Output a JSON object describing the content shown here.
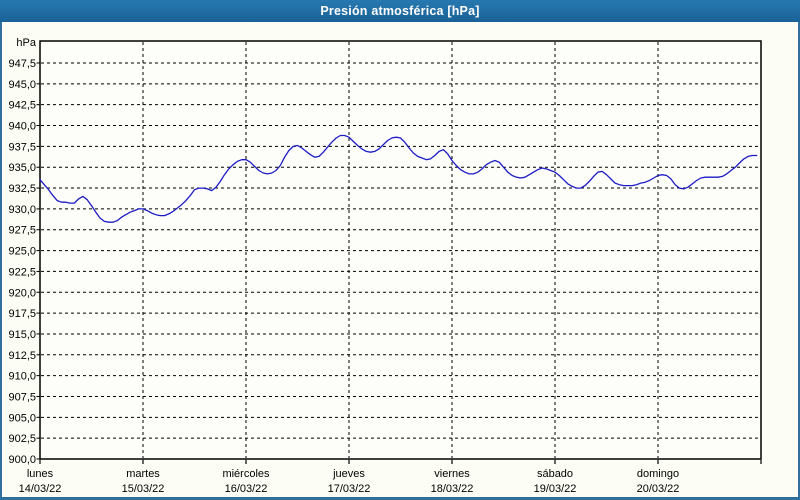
{
  "window": {
    "title": "Presión atmosférica [hPa]"
  },
  "colors": {
    "titlebar": "#1e6ca3",
    "window_border": "#2e6f9e",
    "page_background": "#fcfdf5",
    "plot_background": "#fdfef9",
    "grid": "#000000",
    "axis": "#000000",
    "line": "#1b1bc6",
    "title_text": "#ffffff"
  },
  "chart_data": {
    "type": "line",
    "title": "Presión atmosférica [hPa]",
    "y_unit_label": "hPa",
    "decimal_separator": ",",
    "grid": "dashed",
    "legend": "none",
    "ylim": [
      900.0,
      950.0
    ],
    "y_ticks": [
      947.5,
      945.0,
      942.5,
      940.0,
      937.5,
      935.0,
      932.5,
      930.0,
      927.5,
      925.0,
      922.5,
      920.0,
      917.5,
      915.0,
      912.5,
      910.0,
      907.5,
      905.0,
      902.5,
      900.0
    ],
    "y_tick_labels": [
      "947,5",
      "945,0",
      "942,5",
      "940,0",
      "937,5",
      "935,0",
      "932,5",
      "930,0",
      "927,5",
      "925,0",
      "922,5",
      "920,0",
      "917,5",
      "915,0",
      "912,5",
      "910,0",
      "907,5",
      "905,0",
      "902,5",
      "900,0"
    ],
    "x_days": [
      {
        "name": "lunes",
        "date": "14/03/22"
      },
      {
        "name": "martes",
        "date": "15/03/22"
      },
      {
        "name": "miércoles",
        "date": "16/03/22"
      },
      {
        "name": "jueves",
        "date": "17/03/22"
      },
      {
        "name": "viernes",
        "date": "18/03/22"
      },
      {
        "name": "sábado",
        "date": "19/03/22"
      },
      {
        "name": "domingo",
        "date": "20/03/22"
      }
    ],
    "x_unit": "hours from 14/03/22 00:00",
    "x_step_hours": 1,
    "series": [
      {
        "name": "Presión atmosférica",
        "color": "#1b1bc6",
        "values": [
          933.5,
          932.9,
          932.3,
          931.6,
          931.0,
          930.8,
          930.8,
          930.7,
          930.7,
          931.2,
          931.5,
          931.1,
          930.4,
          929.6,
          928.9,
          928.5,
          928.4,
          928.4,
          928.6,
          929.0,
          929.3,
          929.6,
          929.8,
          930.0,
          930.0,
          929.8,
          929.5,
          929.3,
          929.2,
          929.2,
          929.4,
          929.7,
          930.1,
          930.5,
          931.0,
          931.6,
          932.3,
          932.5,
          932.5,
          932.4,
          932.2,
          932.6,
          933.3,
          934.1,
          934.8,
          935.3,
          935.7,
          935.9,
          935.9,
          935.6,
          935.1,
          934.6,
          934.3,
          934.2,
          934.3,
          934.6,
          935.2,
          936.2,
          937.0,
          937.5,
          937.6,
          937.3,
          936.9,
          936.5,
          936.2,
          936.3,
          936.8,
          937.4,
          938.0,
          938.5,
          938.8,
          938.8,
          938.6,
          938.1,
          937.6,
          937.2,
          936.9,
          936.8,
          936.9,
          937.2,
          937.7,
          938.2,
          938.5,
          938.6,
          938.5,
          938.0,
          937.3,
          936.7,
          936.3,
          936.1,
          935.9,
          936.0,
          936.4,
          936.9,
          937.1,
          936.6,
          935.8,
          935.2,
          934.7,
          934.4,
          934.2,
          934.2,
          934.4,
          934.8,
          935.3,
          935.6,
          935.8,
          935.6,
          935.0,
          934.4,
          934.0,
          933.8,
          933.7,
          933.8,
          934.1,
          934.4,
          934.7,
          934.9,
          934.8,
          934.6,
          934.4,
          934.0,
          933.5,
          933.0,
          932.7,
          932.5,
          932.5,
          932.8,
          933.3,
          933.9,
          934.4,
          934.5,
          934.1,
          933.6,
          933.1,
          932.9,
          932.8,
          932.8,
          932.8,
          932.9,
          933.1,
          933.2,
          933.4,
          933.7,
          934.0,
          934.1,
          934.0,
          933.6,
          932.9,
          932.5,
          932.4,
          932.6,
          933.0,
          933.4,
          933.7,
          933.8,
          933.8,
          933.8,
          933.8,
          933.9,
          934.2,
          934.6,
          935.0,
          935.5,
          936.0,
          936.3,
          936.4,
          936.4
        ]
      }
    ]
  }
}
